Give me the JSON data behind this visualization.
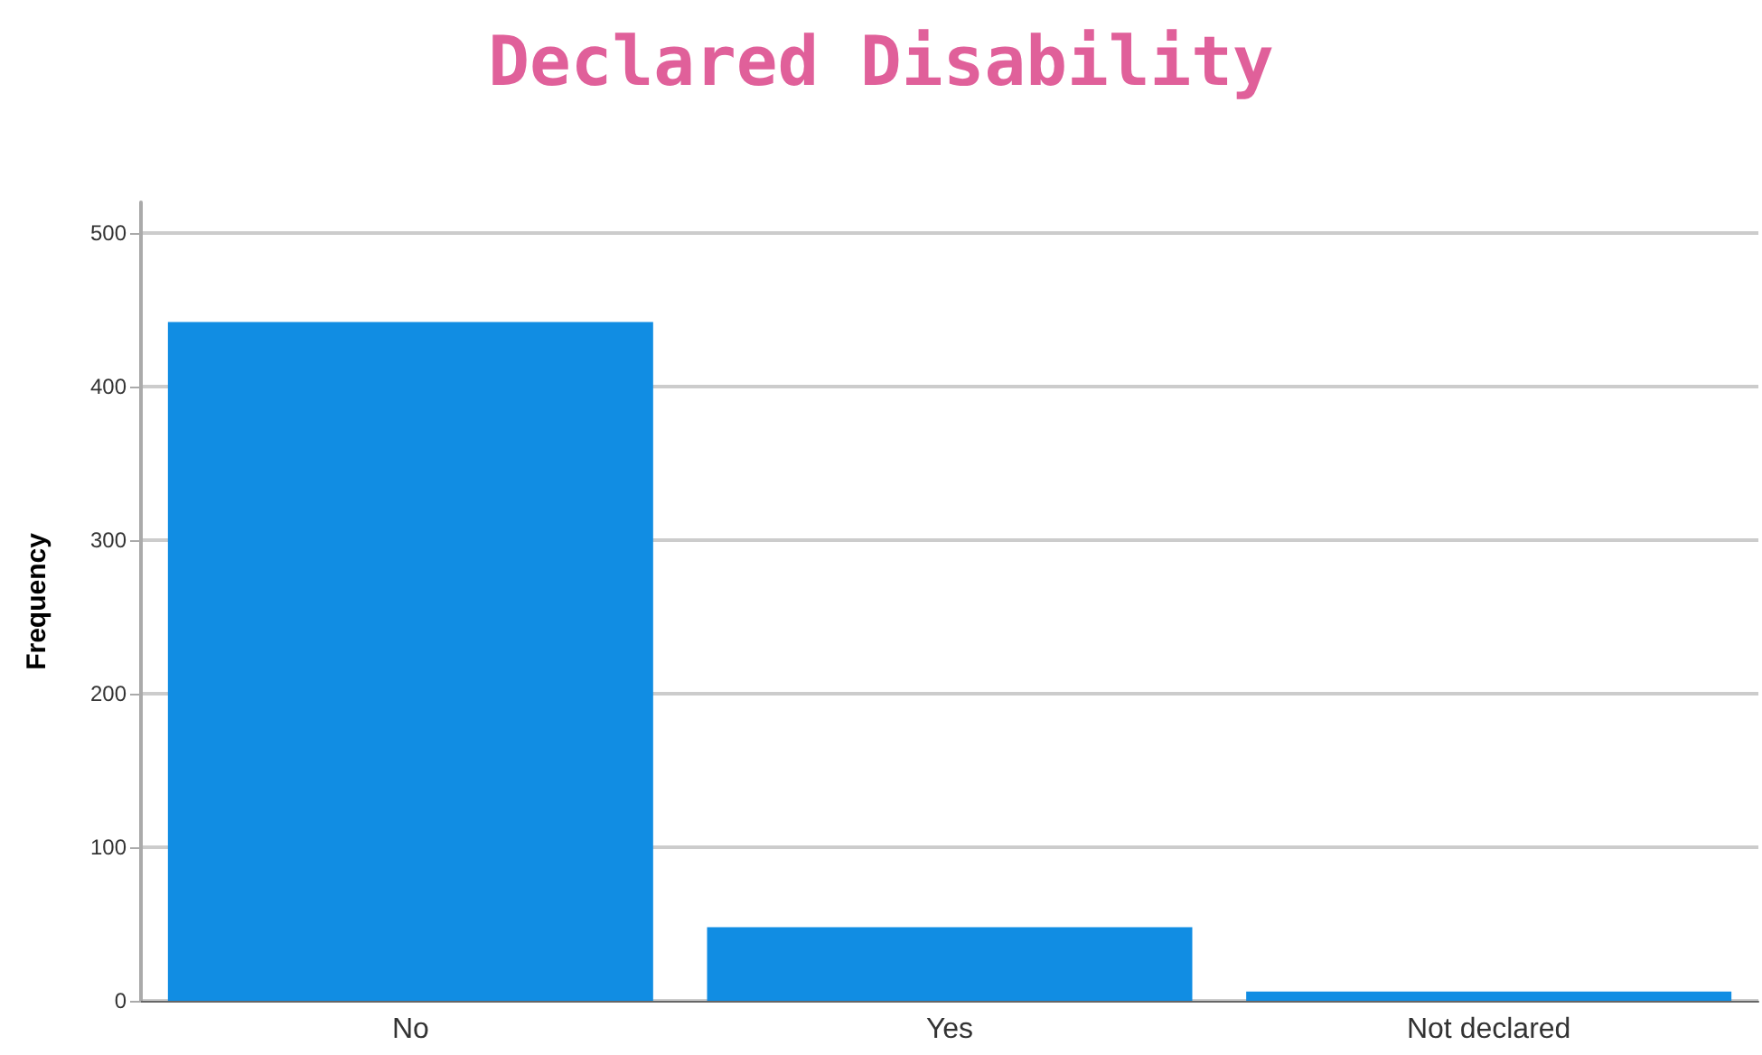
{
  "chart_data": {
    "type": "bar",
    "title": "Declared Disability",
    "ylabel": "Frequency",
    "categories": [
      "No",
      "Yes",
      "Not declared"
    ],
    "values": [
      442,
      48,
      6
    ],
    "color": "#118de3",
    "ylim": [
      0,
      520
    ],
    "yticks": [
      0,
      100,
      200,
      300,
      400,
      500
    ],
    "grid": "y"
  }
}
